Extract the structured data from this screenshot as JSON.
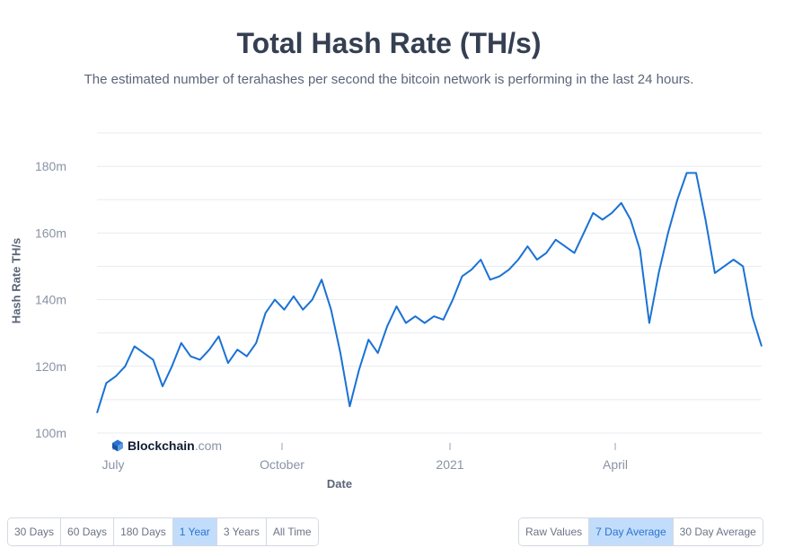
{
  "header": {
    "title": "Total Hash Rate (TH/s)",
    "subtitle": "The estimated number of terahashes per second the bitcoin network is performing in the last 24 hours."
  },
  "brand": {
    "name": "Blockchain",
    "tld": ".com"
  },
  "range_buttons": [
    {
      "label": "30 Days",
      "active": false
    },
    {
      "label": "60 Days",
      "active": false
    },
    {
      "label": "180 Days",
      "active": false
    },
    {
      "label": "1 Year",
      "active": true
    },
    {
      "label": "3 Years",
      "active": false
    },
    {
      "label": "All Time",
      "active": false
    }
  ],
  "average_buttons": [
    {
      "label": "Raw Values",
      "active": false
    },
    {
      "label": "7 Day Average",
      "active": true
    },
    {
      "label": "30 Day Average",
      "active": false
    }
  ],
  "colors": {
    "line": "#1a72d4",
    "grid": "#e8ebf0",
    "tick": "#8a93a4",
    "active_bg": "#c2ddfb"
  },
  "chart_data": {
    "type": "line",
    "xlabel": "Date",
    "ylabel": "Hash Rate TH/s",
    "x_ticks": [
      "July",
      "October",
      "2021",
      "April"
    ],
    "y_ticks": [
      "100m",
      "120m",
      "140m",
      "160m",
      "180m"
    ],
    "y_tick_values": [
      100,
      120,
      140,
      160,
      180
    ],
    "ylim": [
      100,
      190
    ],
    "grid": true,
    "x_unit": "week",
    "series": [
      {
        "values": [
          106,
          115,
          117,
          120,
          126,
          124,
          122,
          114,
          120,
          127,
          123,
          122,
          125,
          129,
          121,
          125,
          123,
          127,
          136,
          140,
          137,
          141,
          137,
          140,
          146,
          137,
          124,
          108,
          119,
          128,
          124,
          132,
          138,
          133,
          135,
          133,
          135,
          134,
          140,
          147,
          149,
          152,
          146,
          147,
          149,
          152,
          156,
          152,
          154,
          158,
          156,
          154,
          160,
          166,
          164,
          166,
          169,
          164,
          155,
          133,
          148,
          160,
          170,
          178,
          178,
          164,
          148,
          150,
          152,
          150,
          135,
          126
        ]
      }
    ]
  }
}
